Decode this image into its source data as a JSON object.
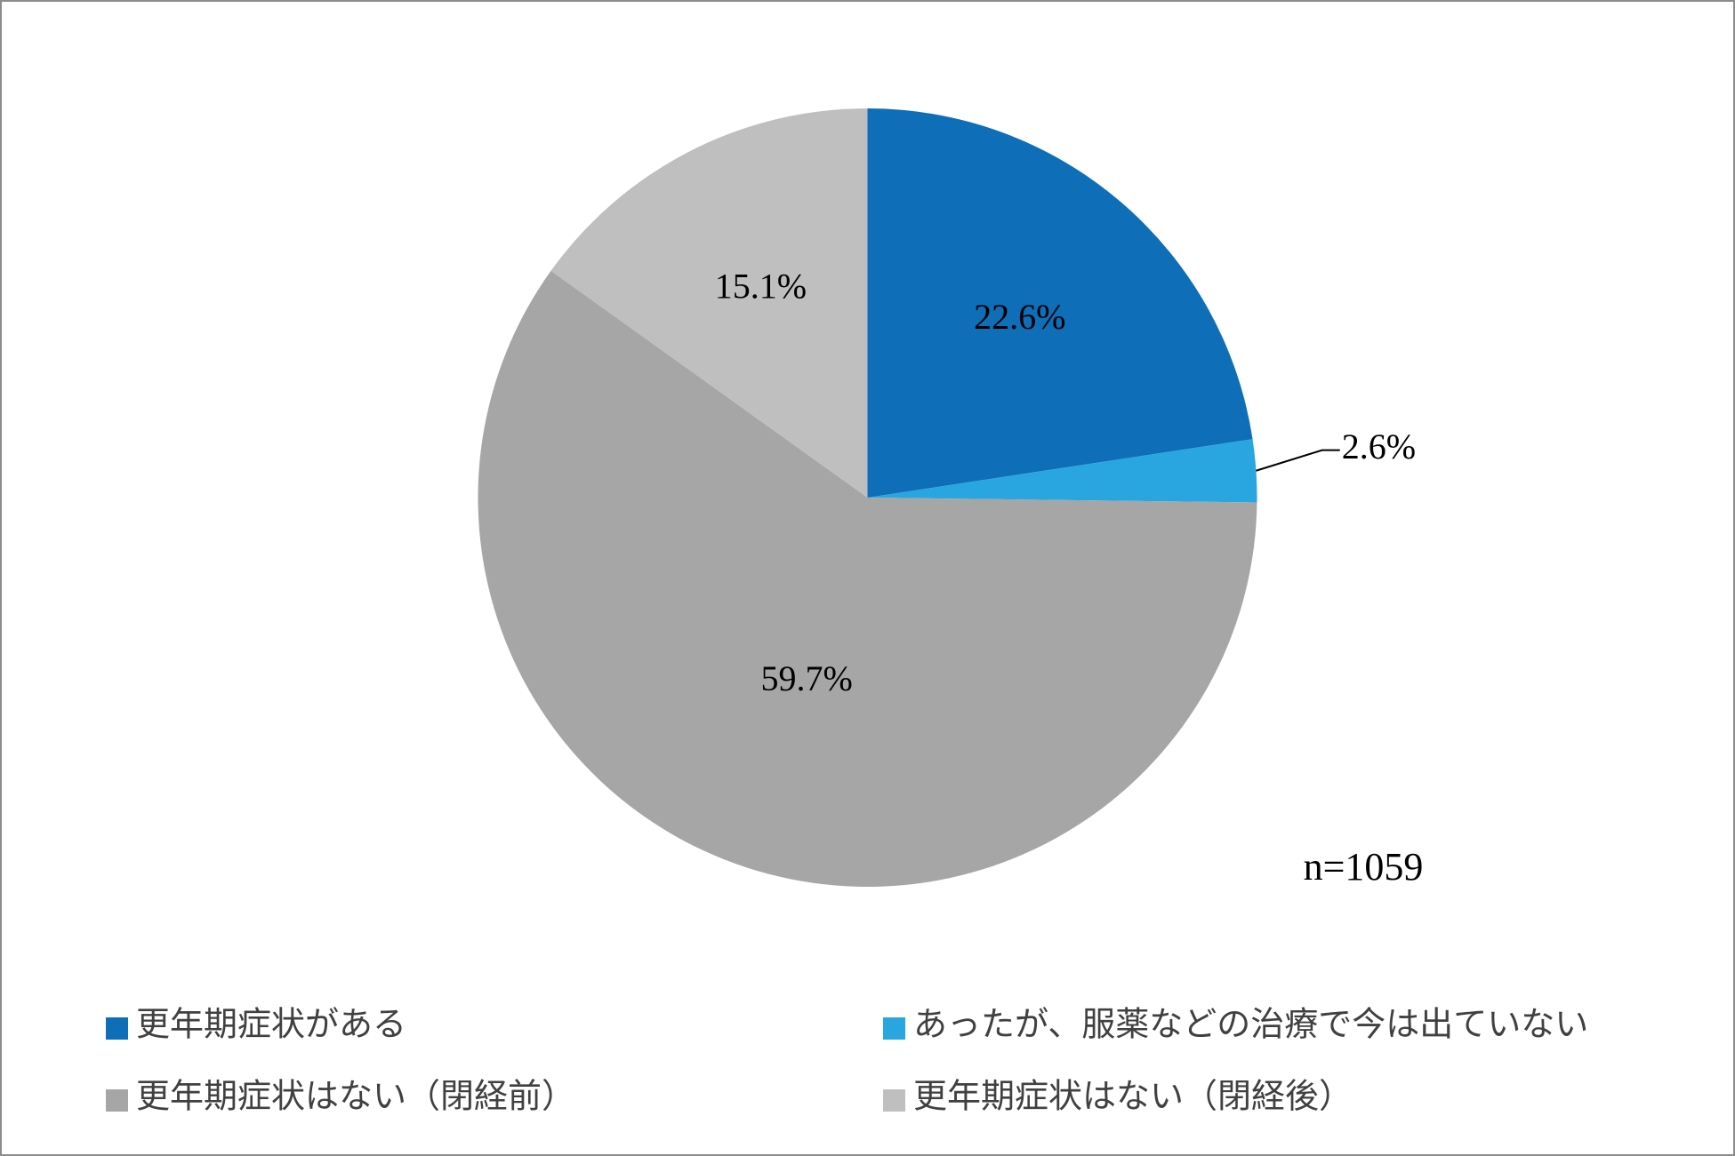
{
  "chart_data": {
    "type": "pie",
    "categories": [
      "更年期症状がある",
      "あったが、服薬などの治療で今は出ていない",
      "更年期症状はない（閉経前）",
      "更年期症状はない（閉経後）"
    ],
    "values": [
      22.6,
      2.6,
      59.7,
      15.1
    ],
    "value_labels": [
      "22.6%",
      "2.6%",
      "59.7%",
      "15.1%"
    ],
    "colors": [
      "#0e6eb8",
      "#29a6df",
      "#a6a6a6",
      "#bfbfbf"
    ],
    "label_colors": [
      "#ffffff",
      "#000000",
      "#000000",
      "#000000"
    ],
    "note": "n=1059",
    "legend": "bottom"
  }
}
